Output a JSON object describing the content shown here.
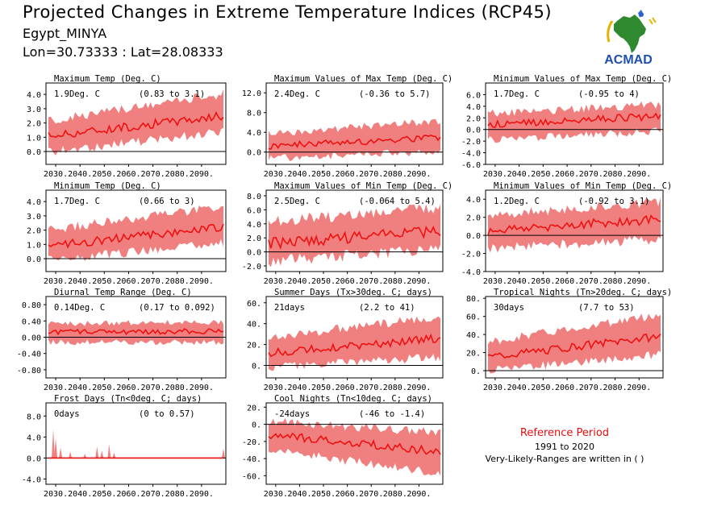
{
  "header": {
    "title": "Projected Changes in Extreme Temperature Indices (RCP45)",
    "location": "Egypt_MINYA",
    "coords": "Lon=30.73333 : Lat=28.08333"
  },
  "logo": {
    "text": "ACMAD",
    "icon": "africa-map-logo"
  },
  "colors": {
    "band": "#f08080",
    "line": "#ee1111",
    "axis": "#000000",
    "zero": "#000000"
  },
  "reference": {
    "title": "Reference Period",
    "years": "1991 to 2020",
    "note": "Very-Likely-Ranges are written in ( )"
  },
  "chart_data": [
    {
      "type": "area",
      "title": "Maximum Temp (Deg. C)",
      "value": "1.9Deg. C",
      "range": "(0.83 to 3.1)",
      "xticks": [
        "2030.",
        "2040.",
        "2050.",
        "2060.",
        "2070.",
        "2080.",
        "2090."
      ],
      "yticks": [
        "4.0",
        "3.0",
        "2.0",
        "1.0",
        "0.0"
      ],
      "ylim": [
        -0.9,
        4.8
      ],
      "xlim": [
        2026,
        2100
      ],
      "mean_start": 1.1,
      "mean_end": 2.5,
      "lower_start": 0.1,
      "lower_end": 1.5,
      "upper_start": 2.0,
      "upper_end": 3.9
    },
    {
      "type": "area",
      "title": "Maximum Values of Max Temp (Deg. C)",
      "value": "2.4Deg. C",
      "range": "(-0.36 to 5.7)",
      "xticks": [
        "2030.",
        "2040.",
        "2050.",
        "2060.",
        "2070.",
        "2080.",
        "2090."
      ],
      "yticks": [
        "12.0",
        "8.0",
        "4.0",
        "0.0"
      ],
      "ylim": [
        -2.5,
        14
      ],
      "xlim": [
        2026,
        2100
      ],
      "mean_start": 1.2,
      "mean_end": 3.0,
      "lower_start": -1.0,
      "lower_end": 0.5,
      "upper_start": 3.5,
      "upper_end": 6.0
    },
    {
      "type": "area",
      "title": "Minimum Values of Max Temp (Deg. C)",
      "value": "1.7Deg. C",
      "range": "(-0.95 to 4)",
      "xticks": [
        "2030.",
        "2040.",
        "2050.",
        "2060.",
        "2070.",
        "2080.",
        "2090."
      ],
      "yticks": [
        "6.0",
        "4.0",
        "2.0",
        "0.0",
        "-2.0",
        "-4.0",
        "-6.0"
      ],
      "ylim": [
        -6,
        8
      ],
      "xlim": [
        2026,
        2100
      ],
      "mean_start": 0.8,
      "mean_end": 2.3,
      "lower_start": -1.5,
      "lower_end": 0.0,
      "upper_start": 2.5,
      "upper_end": 4.0
    },
    {
      "type": "area",
      "title": "Minimum Temp (Deg. C)",
      "value": "1.7Deg. C",
      "range": "(0.66 to 3)",
      "xticks": [
        "2030.",
        "2040.",
        "2050.",
        "2060.",
        "2070.",
        "2080.",
        "2090."
      ],
      "yticks": [
        "4.0",
        "3.0",
        "2.0",
        "1.0",
        "0.0"
      ],
      "ylim": [
        -0.9,
        4.8
      ],
      "xlim": [
        2026,
        2100
      ],
      "mean_start": 0.9,
      "mean_end": 2.2,
      "lower_start": 0.0,
      "lower_end": 1.2,
      "upper_start": 1.9,
      "upper_end": 3.5
    },
    {
      "type": "area",
      "title": "Maximum Values of Min Temp (Deg. C)",
      "value": "2.5Deg. C",
      "range": "(-0.064 to 5.4)",
      "xticks": [
        "2030.",
        "2040.",
        "2050.",
        "2060.",
        "2070.",
        "2080.",
        "2090."
      ],
      "yticks": [
        "8.0",
        "6.0",
        "4.0",
        "2.0",
        "0.0",
        "-2.0"
      ],
      "ylim": [
        -2.8,
        8.8
      ],
      "xlim": [
        2026,
        2100
      ],
      "mean_start": 1.2,
      "mean_end": 3.0,
      "lower_start": -1.0,
      "lower_end": 0.8,
      "upper_start": 4.0,
      "upper_end": 6.0
    },
    {
      "type": "area",
      "title": "Minimum Values of Min Temp (Deg. C)",
      "value": "1.2Deg. C",
      "range": "(-0.92 to 3.1)",
      "xticks": [
        "2030.",
        "2040.",
        "2050.",
        "2060.",
        "2070.",
        "2080.",
        "2090."
      ],
      "yticks": [
        "4.0",
        "2.0",
        "0.0",
        "-2.0",
        "-4.0"
      ],
      "ylim": [
        -4,
        5
      ],
      "xlim": [
        2026,
        2100
      ],
      "mean_start": 0.5,
      "mean_end": 1.8,
      "lower_start": -1.2,
      "lower_end": -0.2,
      "upper_start": 2.0,
      "upper_end": 3.5
    },
    {
      "type": "area",
      "title": "Diurnal Temp Range (Deg. C)",
      "value": "0.14Deg. C",
      "range": "(0.17 to 0.092)",
      "xticks": [
        "2030.",
        "2040.",
        "2050.",
        "2060.",
        "2070.",
        "2080.",
        "2090."
      ],
      "yticks": [
        "0.80",
        "0.40",
        "0.00",
        "-0.40",
        "-0.80"
      ],
      "ylim": [
        -1.0,
        1.0
      ],
      "xlim": [
        2026,
        2100
      ],
      "mean_start": 0.12,
      "mean_end": 0.15,
      "lower_start": -0.1,
      "lower_end": -0.1,
      "upper_start": 0.3,
      "upper_end": 0.35
    },
    {
      "type": "area",
      "title": "Summer Days (Tx>30deg. C; days)",
      "value": "21days",
      "range": "(2.2 to 41)",
      "xticks": [
        "2030.",
        "2040.",
        "2050.",
        "2060.",
        "2070.",
        "2080.",
        "2090."
      ],
      "yticks": [
        "60.",
        "40.",
        "20.",
        "0."
      ],
      "ylim": [
        -12,
        66
      ],
      "xlim": [
        2026,
        2100
      ],
      "mean_start": 12,
      "mean_end": 26,
      "lower_start": 0,
      "lower_end": 10,
      "upper_start": 25,
      "upper_end": 45
    },
    {
      "type": "area",
      "title": "Tropical Nights (Tn>20deg. C; days)",
      "value": "30days",
      "range": "(7.7 to 53)",
      "xticks": [
        "2030.",
        "2040.",
        "2050.",
        "2060.",
        "2070.",
        "2080.",
        "2090."
      ],
      "yticks": [
        "80.",
        "60.",
        "40.",
        "20.",
        "0."
      ],
      "ylim": [
        -8,
        82
      ],
      "xlim": [
        2026,
        2100
      ],
      "mean_start": 15,
      "mean_end": 38,
      "lower_start": 2,
      "lower_end": 20,
      "upper_start": 30,
      "upper_end": 60
    },
    {
      "type": "area",
      "title": "Frost Days (Tn<0deg. C; days)",
      "value": "0days",
      "range": "(0 to 0.57)",
      "xticks": [
        "2030.",
        "2040.",
        "2050.",
        "2060.",
        "2070.",
        "2080.",
        "2090."
      ],
      "yticks": [
        "8.0",
        "4.0",
        "0.0",
        "-4.0"
      ],
      "ylim": [
        -5,
        10.5
      ],
      "xlim": [
        2026,
        2100
      ],
      "mean_start": 0,
      "mean_end": 0,
      "lower_start": 0,
      "lower_end": 0,
      "upper_start": 0,
      "upper_end": 0,
      "spikes": [
        [
          2029,
          5.5
        ],
        [
          2030,
          3.8
        ],
        [
          2032,
          2.0
        ],
        [
          2036,
          1.2
        ],
        [
          2042,
          0.8
        ],
        [
          2047,
          2.2
        ],
        [
          2049,
          1.4
        ],
        [
          2052,
          2.6
        ],
        [
          2054,
          1.0
        ],
        [
          2099,
          1.8
        ]
      ]
    },
    {
      "type": "area",
      "title": "Cool Nights (Tn<10deg. C; days)",
      "value": "-24days",
      "range": "(-46 to -1.4)",
      "xticks": [
        "2030.",
        "2040.",
        "2050.",
        "2060.",
        "2070.",
        "2080.",
        "2090."
      ],
      "yticks": [
        "20.",
        "0.",
        "-20.",
        "-40.",
        "-60."
      ],
      "ylim": [
        -70,
        25
      ],
      "xlim": [
        2026,
        2100
      ],
      "mean_start": -12,
      "mean_end": -32,
      "lower_start": -28,
      "lower_end": -55,
      "upper_start": 2,
      "upper_end": -12
    }
  ]
}
